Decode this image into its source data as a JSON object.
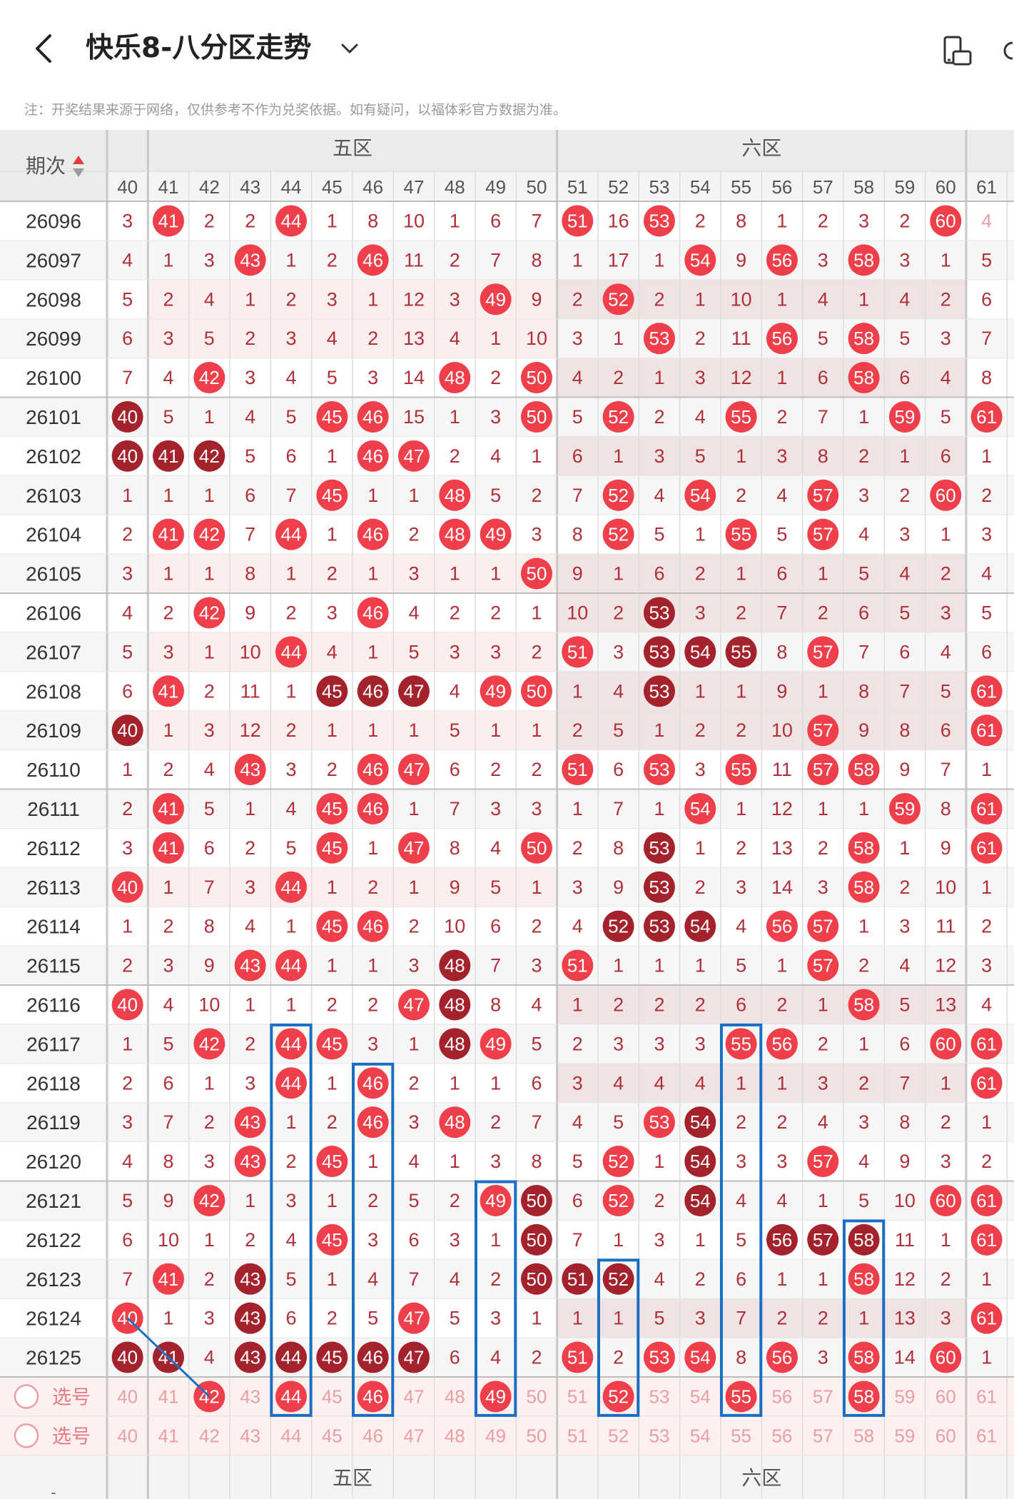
{
  "header": {
    "title": "快乐8-八分区走势",
    "back_icon": "back-arrow-icon",
    "dropdown_icon": "chevron-down-icon",
    "rotate_icon": "screen-rotate-icon"
  },
  "notice": "注：开奖结果来源于网络，仅供参考不作为兑奖依据。如有疑问，以福体彩官方数据为准。",
  "table": {
    "period_header": "期次",
    "sort_icon": "sort-up-down-icon",
    "zones": [
      {
        "label": "五区",
        "from": 41,
        "to": 50
      },
      {
        "label": "六区",
        "from": 51,
        "to": 60
      }
    ],
    "columns": [
      40,
      41,
      42,
      43,
      44,
      45,
      46,
      47,
      48,
      49,
      50,
      51,
      52,
      53,
      54,
      55,
      56,
      57,
      58,
      59,
      60,
      61
    ],
    "rows": [
      {
        "period": "26096",
        "cells": [
          "3",
          "41h",
          "2",
          "2",
          "44h",
          "1",
          "8",
          "10",
          "1",
          "6",
          "7",
          "51h",
          "16",
          "53h",
          "2",
          "8",
          "1",
          "2",
          "3",
          "2",
          "60h",
          "4"
        ]
      },
      {
        "period": "26097",
        "cells": [
          "4",
          "1",
          "3",
          "43h",
          "1",
          "2",
          "46h",
          "11",
          "2",
          "7",
          "8",
          "1",
          "17",
          "1",
          "54h",
          "9",
          "56h",
          "3",
          "58h",
          "3",
          "1",
          "5"
        ]
      },
      {
        "period": "26098",
        "cells": [
          "5",
          "2",
          "4",
          "1",
          "2",
          "3",
          "1",
          "12",
          "3",
          "49h",
          "9",
          "2",
          "52h",
          "2",
          "1",
          "10",
          "1",
          "4",
          "1",
          "4",
          "2",
          "6"
        ]
      },
      {
        "period": "26099",
        "cells": [
          "6",
          "3",
          "5",
          "2",
          "3",
          "4",
          "2",
          "13",
          "4",
          "1",
          "10",
          "3",
          "1",
          "53h",
          "2",
          "11",
          "56h",
          "5",
          "58h",
          "5",
          "3",
          "7"
        ]
      },
      {
        "period": "26100",
        "cells": [
          "7",
          "4",
          "42h",
          "3",
          "4",
          "5",
          "3",
          "14",
          "48h",
          "2",
          "50h",
          "4",
          "2",
          "1",
          "3",
          "12",
          "1",
          "6",
          "58h",
          "6",
          "4",
          "8"
        ]
      },
      {
        "period": "26101",
        "cells": [
          "40d",
          "5",
          "1",
          "4",
          "5",
          "45h",
          "46h",
          "15",
          "1",
          "3",
          "50h",
          "5",
          "52h",
          "2",
          "4",
          "55h",
          "2",
          "7",
          "1",
          "59h",
          "5",
          "61h"
        ]
      },
      {
        "period": "26102",
        "cells": [
          "40d",
          "41d",
          "42d",
          "5",
          "6",
          "1",
          "46h",
          "47h",
          "2",
          "4",
          "1",
          "6",
          "1",
          "3",
          "5",
          "1",
          "3",
          "8",
          "2",
          "1",
          "6",
          "1"
        ]
      },
      {
        "period": "26103",
        "cells": [
          "1",
          "1",
          "1",
          "6",
          "7",
          "45h",
          "1",
          "1",
          "48h",
          "5",
          "2",
          "7",
          "52h",
          "4",
          "54h",
          "2",
          "4",
          "57h",
          "3",
          "2",
          "60h",
          "2"
        ]
      },
      {
        "period": "26104",
        "cells": [
          "2",
          "41h",
          "42h",
          "7",
          "44h",
          "1",
          "46h",
          "2",
          "48h",
          "49h",
          "3",
          "8",
          "52h",
          "5",
          "1",
          "55h",
          "5",
          "57h",
          "4",
          "3",
          "1",
          "3"
        ]
      },
      {
        "period": "26105",
        "cells": [
          "3",
          "1",
          "1",
          "8",
          "1",
          "2",
          "1",
          "3",
          "1",
          "1",
          "50h",
          "9",
          "1",
          "6",
          "2",
          "1",
          "6",
          "1",
          "5",
          "4",
          "2",
          "4"
        ]
      },
      {
        "period": "26106",
        "cells": [
          "4",
          "2",
          "42h",
          "9",
          "2",
          "3",
          "46h",
          "4",
          "2",
          "2",
          "1",
          "10",
          "2",
          "53d",
          "3",
          "2",
          "7",
          "2",
          "6",
          "5",
          "3",
          "5"
        ]
      },
      {
        "period": "26107",
        "cells": [
          "5",
          "3",
          "1",
          "10",
          "44h",
          "4",
          "1",
          "5",
          "3",
          "3",
          "2",
          "51h",
          "3",
          "53d",
          "54d",
          "55d",
          "8",
          "57h",
          "7",
          "6",
          "4",
          "6"
        ]
      },
      {
        "period": "26108",
        "cells": [
          "6",
          "41h",
          "2",
          "11",
          "1",
          "45d",
          "46d",
          "47d",
          "4",
          "49h",
          "50h",
          "1",
          "4",
          "53d",
          "1",
          "1",
          "9",
          "1",
          "8",
          "7",
          "5",
          "61h"
        ]
      },
      {
        "period": "26109",
        "cells": [
          "40d",
          "1",
          "3",
          "12",
          "2",
          "1",
          "1",
          "1",
          "5",
          "1",
          "1",
          "2",
          "5",
          "1",
          "2",
          "2",
          "10",
          "57h",
          "9",
          "8",
          "6",
          "61h"
        ]
      },
      {
        "period": "26110",
        "cells": [
          "1",
          "2",
          "4",
          "43h",
          "3",
          "2",
          "46h",
          "47h",
          "6",
          "2",
          "2",
          "51h",
          "6",
          "53h",
          "3",
          "55h",
          "11",
          "57h",
          "58h",
          "9",
          "7",
          "1"
        ]
      },
      {
        "period": "26111",
        "cells": [
          "2",
          "41h",
          "5",
          "1",
          "4",
          "45h",
          "46h",
          "1",
          "7",
          "3",
          "3",
          "1",
          "7",
          "1",
          "54h",
          "1",
          "12",
          "1",
          "1",
          "59h",
          "8",
          "61h"
        ]
      },
      {
        "period": "26112",
        "cells": [
          "3",
          "41h",
          "6",
          "2",
          "5",
          "45h",
          "1",
          "47h",
          "8",
          "4",
          "50h",
          "2",
          "8",
          "53d",
          "1",
          "2",
          "13",
          "2",
          "58h",
          "1",
          "9",
          "61h"
        ]
      },
      {
        "period": "26113",
        "cells": [
          "40h",
          "1",
          "7",
          "3",
          "44h",
          "1",
          "2",
          "1",
          "9",
          "5",
          "1",
          "3",
          "9",
          "53d",
          "2",
          "3",
          "14",
          "3",
          "58h",
          "2",
          "10",
          "1"
        ]
      },
      {
        "period": "26114",
        "cells": [
          "1",
          "2",
          "8",
          "4",
          "1",
          "45h",
          "46h",
          "2",
          "10",
          "6",
          "2",
          "4",
          "52d",
          "53d",
          "54d",
          "4",
          "56h",
          "57h",
          "1",
          "3",
          "11",
          "2"
        ]
      },
      {
        "period": "26115",
        "cells": [
          "2",
          "3",
          "9",
          "43h",
          "44h",
          "1",
          "1",
          "3",
          "48d",
          "7",
          "3",
          "51h",
          "1",
          "1",
          "1",
          "5",
          "1",
          "57h",
          "2",
          "4",
          "12",
          "3"
        ]
      },
      {
        "period": "26116",
        "cells": [
          "40h",
          "4",
          "10",
          "1",
          "1",
          "2",
          "2",
          "47h",
          "48d",
          "8",
          "4",
          "1",
          "2",
          "2",
          "2",
          "6",
          "2",
          "1",
          "58h",
          "5",
          "13",
          "4"
        ]
      },
      {
        "period": "26117",
        "cells": [
          "1",
          "5",
          "42h",
          "2",
          "44h",
          "45h",
          "3",
          "1",
          "48d",
          "49h",
          "5",
          "2",
          "3",
          "3",
          "3",
          "55h",
          "56h",
          "2",
          "1",
          "6",
          "60h",
          "61h"
        ]
      },
      {
        "period": "26118",
        "cells": [
          "2",
          "6",
          "1",
          "3",
          "44h",
          "1",
          "46h",
          "2",
          "1",
          "1",
          "6",
          "3",
          "4",
          "4",
          "4",
          "1",
          "1",
          "3",
          "2",
          "7",
          "1",
          "61h"
        ]
      },
      {
        "period": "26119",
        "cells": [
          "3",
          "7",
          "2",
          "43h",
          "1",
          "2",
          "46h",
          "3",
          "48h",
          "2",
          "7",
          "4",
          "5",
          "53h",
          "54d",
          "2",
          "2",
          "4",
          "3",
          "8",
          "2",
          "1"
        ]
      },
      {
        "period": "26120",
        "cells": [
          "4",
          "8",
          "3",
          "43h",
          "2",
          "45h",
          "1",
          "4",
          "1",
          "3",
          "8",
          "5",
          "52h",
          "1",
          "54d",
          "3",
          "3",
          "57h",
          "4",
          "9",
          "3",
          "2"
        ]
      },
      {
        "period": "26121",
        "cells": [
          "5",
          "9",
          "42h",
          "1",
          "3",
          "1",
          "2",
          "5",
          "2",
          "49h",
          "50d",
          "6",
          "52h",
          "2",
          "54d",
          "4",
          "4",
          "1",
          "5",
          "10",
          "60h",
          "61h"
        ]
      },
      {
        "period": "26122",
        "cells": [
          "6",
          "10",
          "1",
          "2",
          "4",
          "45h",
          "3",
          "6",
          "3",
          "1",
          "50d",
          "7",
          "1",
          "3",
          "1",
          "5",
          "56d",
          "57d",
          "58d",
          "11",
          "1",
          "61h"
        ]
      },
      {
        "period": "26123",
        "cells": [
          "7",
          "41h",
          "2",
          "43d",
          "5",
          "1",
          "4",
          "7",
          "4",
          "2",
          "50d",
          "51d",
          "52d",
          "4",
          "2",
          "6",
          "1",
          "1",
          "58h",
          "12",
          "2",
          "1"
        ]
      },
      {
        "period": "26124",
        "cells": [
          "40h",
          "1",
          "3",
          "43d",
          "6",
          "2",
          "5",
          "47h",
          "5",
          "3",
          "1",
          "1",
          "1",
          "5",
          "3",
          "7",
          "2",
          "2",
          "1",
          "13",
          "3",
          "61h"
        ]
      },
      {
        "period": "26125",
        "cells": [
          "40d",
          "41d",
          "4",
          "43d",
          "44d",
          "45d",
          "46d",
          "47d",
          "6",
          "4",
          "2",
          "51h",
          "2",
          "53h",
          "54h",
          "8",
          "56h",
          "3",
          "58h",
          "14",
          "60h",
          "1"
        ]
      }
    ],
    "select_rows": [
      {
        "label": "选号",
        "picked": [
          42,
          44,
          46,
          49,
          52,
          55,
          58
        ]
      },
      {
        "label": "选号",
        "picked": []
      }
    ]
  },
  "colors": {
    "hit": "#ef3f4a",
    "dark_hit": "#a3222c",
    "miss_text": "#b0303a",
    "faded_text": "#e8a0a5",
    "highlight_box": "#1a6fc4"
  }
}
